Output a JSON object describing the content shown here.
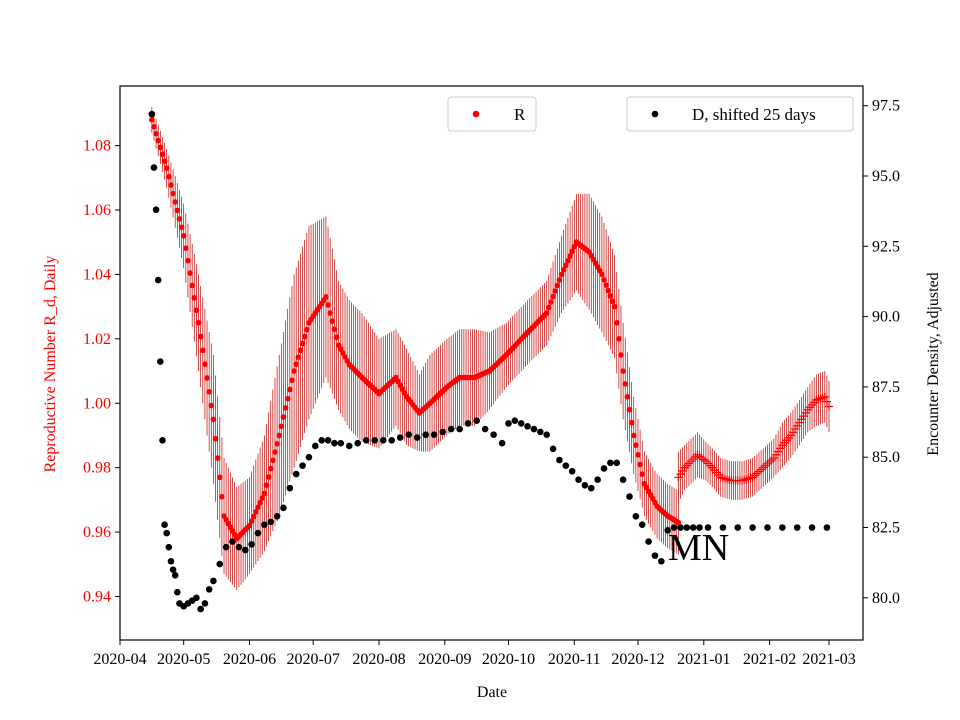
{
  "chart_data": {
    "type": "scatter",
    "xlabel": "Date",
    "y1label": "Reproductive Number R_d, Daily",
    "y2label": "Encounter Density, Adjusted",
    "annotation": "MN",
    "colors": {
      "r_series": "#ff0000",
      "r_errorbar": "#c00000",
      "d_series": "#000000",
      "left_axis_text": "#ff0000"
    },
    "x_range": [
      "2020-04-01",
      "2021-03-17"
    ],
    "y1_range": [
      0.9265,
      1.0985
    ],
    "y2_range": [
      78.5,
      98.2
    ],
    "x_ticks": [
      "2020-04",
      "2020-05",
      "2020-06",
      "2020-07",
      "2020-08",
      "2020-09",
      "2020-10",
      "2020-11",
      "2020-12",
      "2021-01",
      "2021-02",
      "2021-03"
    ],
    "y1_ticks": [
      "0.94",
      "0.96",
      "0.98",
      "1.00",
      "1.02",
      "1.04",
      "1.06",
      "1.08"
    ],
    "y2_ticks": [
      "80.0",
      "82.5",
      "85.0",
      "87.5",
      "90.0",
      "92.5",
      "95.0",
      "97.5"
    ],
    "legends": [
      {
        "label": "R",
        "color": "#ff0000",
        "position": "top-center"
      },
      {
        "label": "D, shifted 25 days",
        "color": "#000000",
        "position": "top-right"
      }
    ],
    "series": [
      {
        "name": "R",
        "axis": "left",
        "marker": "dot",
        "x": [
          "2020-04-16",
          "2020-04-23",
          "2020-05-01",
          "2020-05-08",
          "2020-05-15",
          "2020-05-20",
          "2020-05-26",
          "2020-06-01",
          "2020-06-08",
          "2020-06-15",
          "2020-06-22",
          "2020-06-29",
          "2020-07-07",
          "2020-07-13",
          "2020-07-18",
          "2020-07-24",
          "2020-08-01",
          "2020-08-09",
          "2020-08-14",
          "2020-08-20",
          "2020-08-25",
          "2020-09-02",
          "2020-09-08",
          "2020-09-15",
          "2020-09-22",
          "2020-09-30",
          "2020-10-10",
          "2020-10-19",
          "2020-10-26",
          "2020-11-02",
          "2020-11-08",
          "2020-11-14",
          "2020-11-20",
          "2020-11-24",
          "2020-11-29",
          "2020-12-04",
          "2020-12-10",
          "2020-12-15",
          "2020-12-20"
        ],
        "values": [
          1.088,
          1.073,
          1.052,
          1.025,
          0.995,
          0.965,
          0.958,
          0.962,
          0.972,
          0.99,
          1.01,
          1.025,
          1.033,
          1.018,
          1.012,
          1.008,
          1.003,
          1.008,
          1.002,
          0.997,
          1.0,
          1.005,
          1.008,
          1.008,
          1.01,
          1.015,
          1.022,
          1.028,
          1.04,
          1.05,
          1.047,
          1.04,
          1.03,
          1.01,
          0.99,
          0.975,
          0.968,
          0.965,
          0.963
        ],
        "error": [
          0.004,
          0.006,
          0.01,
          0.015,
          0.02,
          0.018,
          0.016,
          0.015,
          0.018,
          0.025,
          0.03,
          0.03,
          0.025,
          0.02,
          0.02,
          0.02,
          0.017,
          0.015,
          0.015,
          0.012,
          0.015,
          0.015,
          0.015,
          0.015,
          0.012,
          0.01,
          0.01,
          0.01,
          0.012,
          0.015,
          0.018,
          0.018,
          0.016,
          0.015,
          0.012,
          0.01,
          0.01,
          0.01,
          0.01
        ]
      },
      {
        "name": "R",
        "axis": "left",
        "marker": "plus",
        "x": [
          "2020-12-20",
          "2020-12-23",
          "2020-12-26",
          "2020-12-29",
          "2021-01-02",
          "2021-01-05",
          "2021-01-09",
          "2021-01-14",
          "2021-01-19",
          "2021-01-24",
          "2021-01-29",
          "2021-02-03",
          "2021-02-07",
          "2021-02-11",
          "2021-02-15",
          "2021-02-19",
          "2021-02-23",
          "2021-02-27",
          "2021-03-01"
        ],
        "values": [
          0.977,
          0.98,
          0.982,
          0.984,
          0.982,
          0.98,
          0.977,
          0.976,
          0.976,
          0.977,
          0.98,
          0.983,
          0.987,
          0.99,
          0.994,
          0.998,
          1.001,
          1.002,
          0.999
        ],
        "error": [
          0.008,
          0.007,
          0.007,
          0.007,
          0.006,
          0.006,
          0.006,
          0.006,
          0.006,
          0.006,
          0.006,
          0.006,
          0.007,
          0.007,
          0.007,
          0.007,
          0.008,
          0.008,
          0.008
        ]
      },
      {
        "name": "D, shifted 25 days",
        "axis": "right",
        "marker": "dot",
        "x": [
          "2020-04-16",
          "2020-04-17",
          "2020-04-18",
          "2020-04-19",
          "2020-04-20",
          "2020-04-21",
          "2020-04-22",
          "2020-04-23",
          "2020-04-24",
          "2020-04-25",
          "2020-04-26",
          "2020-04-27",
          "2020-04-28",
          "2020-04-29",
          "2020-05-01",
          "2020-05-03",
          "2020-05-05",
          "2020-05-07",
          "2020-05-09",
          "2020-05-11",
          "2020-05-13",
          "2020-05-15",
          "2020-05-18",
          "2020-05-21",
          "2020-05-24",
          "2020-05-27",
          "2020-05-30",
          "2020-06-02",
          "2020-06-05",
          "2020-06-08",
          "2020-06-11",
          "2020-06-14",
          "2020-06-17",
          "2020-06-20",
          "2020-06-23",
          "2020-06-26",
          "2020-06-29",
          "2020-07-02",
          "2020-07-05",
          "2020-07-08",
          "2020-07-11",
          "2020-07-14",
          "2020-07-18",
          "2020-07-22",
          "2020-07-26",
          "2020-07-30",
          "2020-08-03",
          "2020-08-07",
          "2020-08-11",
          "2020-08-15",
          "2020-08-19",
          "2020-08-23",
          "2020-08-27",
          "2020-08-31",
          "2020-09-04",
          "2020-09-08",
          "2020-09-12",
          "2020-09-16",
          "2020-09-20",
          "2020-09-24",
          "2020-09-28",
          "2020-10-01",
          "2020-10-04",
          "2020-10-07",
          "2020-10-10",
          "2020-10-13",
          "2020-10-16",
          "2020-10-19",
          "2020-10-22",
          "2020-10-25",
          "2020-10-28",
          "2020-10-31",
          "2020-11-03",
          "2020-11-06",
          "2020-11-09",
          "2020-11-12",
          "2020-11-15",
          "2020-11-18",
          "2020-11-21",
          "2020-11-24",
          "2020-11-27",
          "2020-11-30",
          "2020-12-03",
          "2020-12-06",
          "2020-12-09",
          "2020-12-12",
          "2020-12-15",
          "2020-12-18",
          "2020-12-21",
          "2020-12-24",
          "2020-12-27",
          "2020-12-30",
          "2021-01-03",
          "2021-01-10",
          "2021-01-17",
          "2021-01-24",
          "2021-01-31",
          "2021-02-07",
          "2021-02-14",
          "2021-02-21",
          "2021-02-28"
        ],
        "values": [
          97.2,
          95.3,
          93.8,
          91.3,
          88.4,
          85.6,
          82.6,
          82.3,
          81.8,
          81.3,
          81.0,
          80.8,
          80.2,
          79.8,
          79.7,
          79.8,
          79.9,
          80.0,
          79.6,
          79.8,
          80.3,
          80.6,
          81.2,
          81.8,
          82.0,
          81.8,
          81.7,
          81.9,
          82.3,
          82.6,
          82.7,
          82.9,
          83.2,
          83.9,
          84.4,
          84.7,
          85.0,
          85.4,
          85.6,
          85.6,
          85.5,
          85.5,
          85.4,
          85.5,
          85.6,
          85.6,
          85.6,
          85.6,
          85.7,
          85.8,
          85.7,
          85.8,
          85.8,
          85.9,
          86.0,
          86.0,
          86.2,
          86.3,
          86.0,
          85.8,
          85.5,
          86.2,
          86.3,
          86.2,
          86.1,
          86.0,
          85.9,
          85.8,
          85.3,
          84.9,
          84.7,
          84.5,
          84.2,
          84.0,
          83.9,
          84.2,
          84.6,
          84.8,
          84.8,
          84.2,
          83.6,
          82.9,
          82.6,
          82.0,
          81.5,
          81.3,
          82.4,
          82.5,
          82.5,
          82.5,
          82.5,
          82.5,
          82.5,
          82.5,
          82.5,
          82.5,
          82.5,
          82.5,
          82.5,
          82.5,
          82.5
        ]
      }
    ]
  }
}
